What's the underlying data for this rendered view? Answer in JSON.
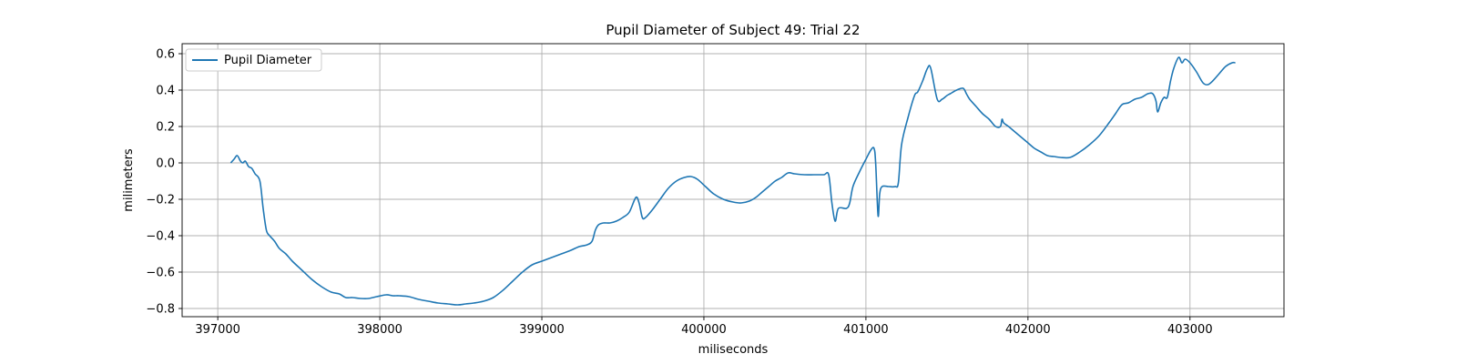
{
  "chart_data": {
    "type": "line",
    "title": "Pupil Diameter of Subject 49: Trial 22",
    "xlabel": "miliseconds",
    "ylabel": "milimeters",
    "xlim": [
      396780,
      403580
    ],
    "ylim": [
      -0.845,
      0.655
    ],
    "xticks": [
      397000,
      398000,
      399000,
      400000,
      401000,
      402000,
      403000
    ],
    "yticks": [
      -0.8,
      -0.6,
      -0.4,
      -0.2,
      0.0,
      0.2,
      0.4,
      0.6
    ],
    "ytick_labels": [
      "−0.8",
      "−0.6",
      "−0.4",
      "−0.2",
      "0.0",
      "0.2",
      "0.4",
      "0.6"
    ],
    "grid": true,
    "legend_position": "upper left",
    "series": [
      {
        "name": "Pupil Diameter",
        "color": "#1f77b4",
        "x": [
          397080,
          397100,
          397120,
          397140,
          397155,
          397170,
          397190,
          397210,
          397230,
          397260,
          397280,
          397300,
          397320,
          397350,
          397380,
          397420,
          397460,
          397520,
          397580,
          397640,
          397700,
          397750,
          397790,
          397830,
          397880,
          397930,
          397980,
          398040,
          398080,
          398120,
          398180,
          398240,
          398300,
          398360,
          398420,
          398480,
          398530,
          398580,
          398640,
          398700,
          398760,
          398820,
          398880,
          398940,
          399000,
          399060,
          399120,
          399180,
          399230,
          399280,
          399310,
          399330,
          399350,
          399380,
          399420,
          399460,
          399500,
          399540,
          399580,
          399600,
          399620,
          399640,
          399680,
          399730,
          399780,
          399830,
          399880,
          399920,
          399960,
          400010,
          400060,
          400120,
          400180,
          400230,
          400280,
          400320,
          400360,
          400400,
          400440,
          400480,
          400520,
          400560,
          400620,
          400680,
          400740,
          400770,
          400790,
          400810,
          400830,
          400880,
          400900,
          400920,
          400960,
          401000,
          401030,
          401050,
          401060,
          401075,
          401085,
          401100,
          401140,
          401180,
          401200,
          401220,
          401260,
          401300,
          401320,
          401350,
          401380,
          401400,
          401440,
          401470,
          401500,
          401520,
          401560,
          401600,
          401620,
          401640,
          401680,
          401720,
          401760,
          401800,
          401830,
          401840,
          401850,
          401880,
          401920,
          401960,
          402000,
          402040,
          402080,
          402120,
          402160,
          402200,
          402260,
          402320,
          402380,
          402440,
          402500,
          402540,
          402580,
          402620,
          402660,
          402700,
          402740,
          402770,
          402790,
          402800,
          402820,
          402840,
          402860,
          402880,
          402900,
          402930,
          402950,
          402970,
          403000,
          403040,
          403080,
          403110,
          403140,
          403180,
          403220,
          403260,
          403280
        ],
        "y": [
          0.0,
          0.02,
          0.04,
          0.01,
          0.0,
          0.01,
          -0.02,
          -0.03,
          -0.06,
          -0.1,
          -0.25,
          -0.37,
          -0.4,
          -0.43,
          -0.47,
          -0.5,
          -0.54,
          -0.59,
          -0.64,
          -0.68,
          -0.71,
          -0.72,
          -0.74,
          -0.74,
          -0.745,
          -0.745,
          -0.735,
          -0.725,
          -0.73,
          -0.73,
          -0.735,
          -0.75,
          -0.76,
          -0.77,
          -0.775,
          -0.78,
          -0.775,
          -0.77,
          -0.76,
          -0.74,
          -0.7,
          -0.65,
          -0.6,
          -0.56,
          -0.54,
          -0.52,
          -0.5,
          -0.48,
          -0.46,
          -0.45,
          -0.43,
          -0.37,
          -0.34,
          -0.33,
          -0.33,
          -0.32,
          -0.3,
          -0.27,
          -0.19,
          -0.22,
          -0.3,
          -0.3,
          -0.26,
          -0.2,
          -0.14,
          -0.1,
          -0.08,
          -0.075,
          -0.09,
          -0.13,
          -0.17,
          -0.2,
          -0.215,
          -0.22,
          -0.21,
          -0.19,
          -0.16,
          -0.13,
          -0.1,
          -0.08,
          -0.055,
          -0.06,
          -0.065,
          -0.065,
          -0.065,
          -0.065,
          -0.22,
          -0.32,
          -0.25,
          -0.25,
          -0.22,
          -0.13,
          -0.05,
          0.02,
          0.07,
          0.08,
          0.0,
          -0.29,
          -0.17,
          -0.13,
          -0.13,
          -0.13,
          -0.11,
          0.1,
          0.25,
          0.37,
          0.39,
          0.45,
          0.52,
          0.52,
          0.35,
          0.35,
          0.37,
          0.38,
          0.4,
          0.41,
          0.38,
          0.35,
          0.31,
          0.27,
          0.24,
          0.2,
          0.2,
          0.24,
          0.22,
          0.2,
          0.17,
          0.14,
          0.11,
          0.08,
          0.06,
          0.04,
          0.035,
          0.03,
          0.03,
          0.06,
          0.1,
          0.15,
          0.22,
          0.27,
          0.32,
          0.33,
          0.35,
          0.36,
          0.38,
          0.38,
          0.34,
          0.28,
          0.33,
          0.36,
          0.36,
          0.45,
          0.52,
          0.58,
          0.55,
          0.57,
          0.55,
          0.5,
          0.44,
          0.43,
          0.45,
          0.49,
          0.53,
          0.55,
          0.55
        ]
      }
    ]
  }
}
